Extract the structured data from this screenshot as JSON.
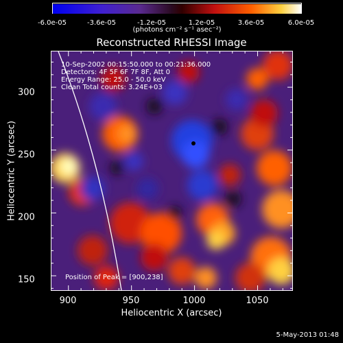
{
  "colorbar": {
    "ticks": [
      "-6.0e-05",
      "-3.6e-05",
      "-1.2e-05",
      "1.2e-05",
      "3.6e-05",
      "6.0e-05"
    ],
    "units": "(photons cm⁻² s⁻¹ asec⁻²)",
    "min": -6e-05,
    "max": 6e-05
  },
  "title": "Reconstructed RHESSI Image",
  "annotations": {
    "time_range": "10-Sep-2002 00:15:50.000 to 00:21:36.000",
    "detectors": "Detectors: 4F 5F 6F 7F 8F, Att 0",
    "energy_range": "Energy Range: 25.0 - 50.0 keV",
    "clean": "Clean    Total counts: 3.24E+03",
    "peak": "Position of Peak = [900,238]"
  },
  "axes": {
    "xlabel": "Heliocentric X (arcsec)",
    "ylabel": "Heliocentric Y (arcsec)",
    "xticks": [
      "900",
      "950",
      "1000",
      "1050"
    ],
    "yticks": [
      "300",
      "250",
      "200",
      "150"
    ],
    "xlim": [
      886,
      1078
    ],
    "ylim": [
      138,
      329
    ]
  },
  "timestamp": "5-May-2013 01:48",
  "colors": {
    "background": "#000000",
    "limb": "#ffffff",
    "peak_marker": "#000000"
  }
}
